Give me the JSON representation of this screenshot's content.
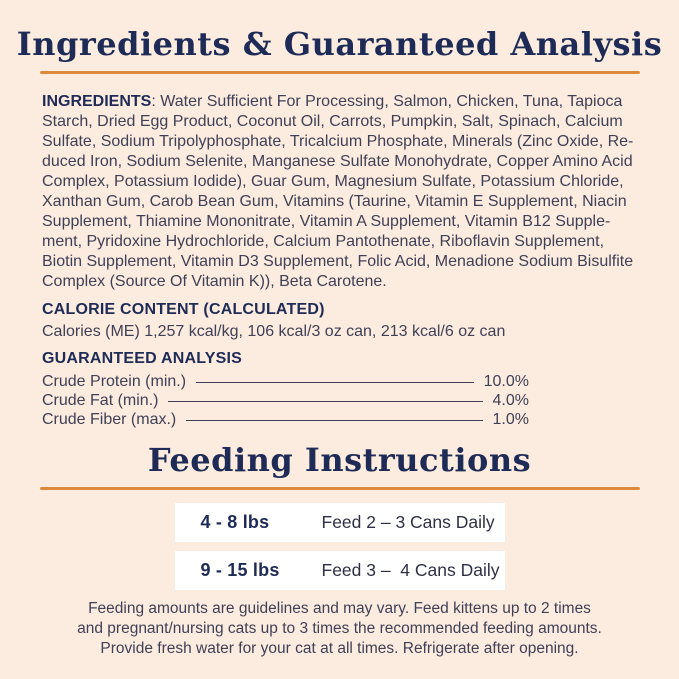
{
  "colors": {
    "background": "#fcecdf",
    "accent_orange": "#dd8a3a",
    "navy": "#1e2b56",
    "body_text": "#3f3f55",
    "row_background": "#ffffff"
  },
  "ingredients_section": {
    "title": "Ingredients & Guaranteed Analysis",
    "ingredients_label": "INGREDIENTS",
    "ingredients_lines": [
      ": Water Sufficient For Processing, Salmon, Chicken, Tuna, Tapioca",
      "Starch, Dried Egg Product, Coconut Oil, Carrots, Pumpkin, Salt, Spinach, Calcium",
      "Sulfate, Sodium Tripolyphosphate, Tricalcium Phosphate, Minerals (Zinc Oxide, Re-",
      "duced Iron, Sodium Selenite, Manganese Sulfate Monohydrate, Copper Amino Acid",
      "Complex, Potassium Iodide), Guar Gum, Magnesium Sulfate, Potassium Chloride,",
      "Xanthan Gum, Carob Bean Gum, Vitamins (Taurine, Vitamin E Supplement, Niacin",
      "Supplement, Thiamine Mononitrate, Vitamin A Supplement, Vitamin B12 Supple-",
      "ment, Pyridoxine Hydrochloride, Calcium Pantothenate, Riboflavin Supplement,",
      "Biotin Supplement, Vitamin D3 Supplement, Folic Acid, Menadione Sodium Bisulfite",
      "Complex (Source Of Vitamin K)), Beta Carotene."
    ],
    "calorie_heading": "CALORIE CONTENT (CALCULATED)",
    "calorie_text": "Calories (ME) 1,257 kcal/kg, 106 kcal/3 oz can, 213 kcal/6 oz can",
    "analysis_heading": "GUARANTEED ANALYSIS",
    "analysis_rows": [
      {
        "label": "Crude Protein (min.)",
        "value": "10.0%"
      },
      {
        "label": "Crude Fat (min.)",
        "value": "4.0%"
      },
      {
        "label": "Crude Fiber (max.)",
        "value": "1.0%"
      }
    ]
  },
  "feeding_section": {
    "title": "Feeding Instructions",
    "rows": [
      {
        "weight": "4 - 8 lbs",
        "instruction": "Feed 2 – 3 Cans Daily"
      },
      {
        "weight": "9 - 15 lbs",
        "instruction": "Feed 3 –  4 Cans Daily"
      }
    ],
    "note_lines": [
      "Feeding amounts are guidelines and may vary. Feed kittens up to 2 times",
      "and pregnant/nursing cats up to 3 times the recommended feeding amounts.",
      "Provide fresh water for your cat at all times. Refrigerate after opening."
    ]
  }
}
